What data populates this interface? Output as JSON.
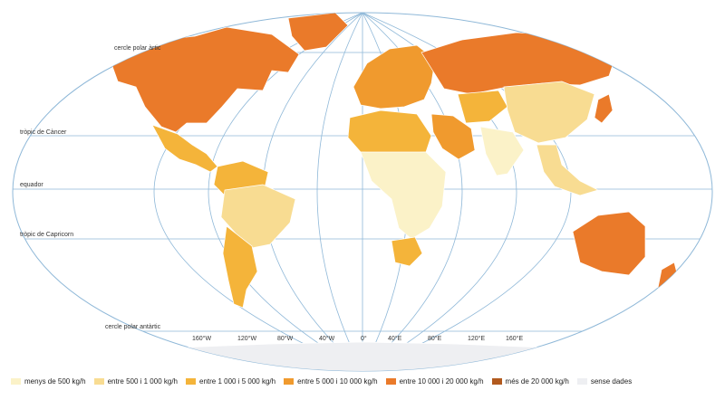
{
  "map": {
    "latitude_lines": [
      {
        "label": "cercle polar àrtic"
      },
      {
        "label": "tròpic de Càncer"
      },
      {
        "label": "equador"
      },
      {
        "label": "tròpic de Capricorn"
      },
      {
        "label": "cercle polar antàrtic"
      }
    ],
    "longitude_labels": [
      "160°W",
      "120°W",
      "80°W",
      "40°W",
      "0°",
      "40°E",
      "80°E",
      "120°E",
      "160°E"
    ],
    "colors": {
      "ocean": "#ffffff",
      "grid": "#8fb8d8",
      "border": "#ffffff",
      "antarctica": "#eef0f2"
    }
  },
  "legend": [
    {
      "label": "menys de 500 kg/h",
      "color": "#fbf2c8"
    },
    {
      "label": "entre 500 i 1 000 kg/h",
      "color": "#f8dc92"
    },
    {
      "label": "entre 1 000 i 5 000 kg/h",
      "color": "#f4b43a"
    },
    {
      "label": "entre 5 000 i 10 000 kg/h",
      "color": "#f09a2e"
    },
    {
      "label": "entre 10 000 i 20 000 kg/h",
      "color": "#ea7a2a"
    },
    {
      "label": "més de 20 000 kg/h",
      "color": "#b25a1e"
    },
    {
      "label": "sense dades",
      "color": "#eeeff2"
    }
  ],
  "regions": [
    {
      "name": "north-america",
      "class_index": 4
    },
    {
      "name": "greenland",
      "class_index": 4
    },
    {
      "name": "mexico-central-america",
      "class_index": 2
    },
    {
      "name": "south-america-north",
      "class_index": 2
    },
    {
      "name": "brazil",
      "class_index": 1
    },
    {
      "name": "argentina-chile",
      "class_index": 2
    },
    {
      "name": "europe",
      "class_index": 3
    },
    {
      "name": "russia",
      "class_index": 4
    },
    {
      "name": "north-africa",
      "class_index": 2
    },
    {
      "name": "sub-saharan-africa",
      "class_index": 0
    },
    {
      "name": "south-africa",
      "class_index": 2
    },
    {
      "name": "middle-east",
      "class_index": 3
    },
    {
      "name": "central-asia",
      "class_index": 2
    },
    {
      "name": "china",
      "class_index": 1
    },
    {
      "name": "india",
      "class_index": 0
    },
    {
      "name": "southeast-asia",
      "class_index": 1
    },
    {
      "name": "japan",
      "class_index": 4
    },
    {
      "name": "australia",
      "class_index": 4
    },
    {
      "name": "new-zealand",
      "class_index": 4
    },
    {
      "name": "antarctica",
      "class_index": 6
    }
  ]
}
